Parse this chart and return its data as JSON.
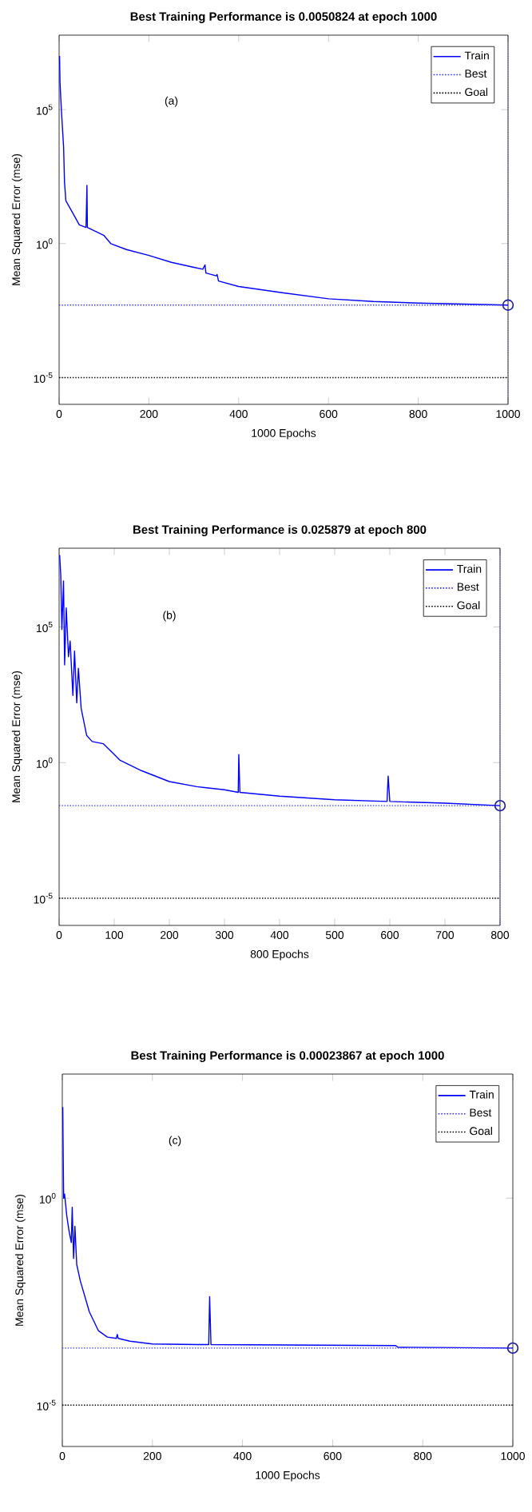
{
  "chart_data": [
    {
      "type": "line",
      "title": "Best Training Performance is 0.0050824 at epoch 1000",
      "xlabel": "1000 Epochs",
      "ylabel": "Mean Squared Error  (mse)",
      "log": true,
      "legend": "top right",
      "annotations": [
        "(a)"
      ],
      "xlim": [
        0,
        1000
      ],
      "xticks": [
        0,
        200,
        400,
        600,
        800,
        1000
      ],
      "ylim": [
        1e-06,
        60000000.0
      ],
      "yticks": [
        {
          "value": 1e-05,
          "label": "10$^{-5}$"
        },
        {
          "value": 1,
          "label": "10$^{0}$"
        },
        {
          "value": 100000.0,
          "label": "10$^{5}$"
        }
      ],
      "ref_lines": [
        {
          "axis": "x",
          "value": 1000,
          "color": "#3333ff",
          "line_style": "dotted"
        }
      ],
      "series": [
        {
          "name": "Train",
          "color": "#0000ff",
          "line_style": "solid",
          "x": [
            1,
            2,
            5,
            10,
            12,
            15,
            25,
            45,
            60,
            62,
            63,
            100,
            115,
            150,
            200,
            250,
            300,
            320,
            325,
            327,
            350,
            352,
            355,
            400,
            500,
            600,
            700,
            800,
            1000
          ],
          "values": [
            10000000.0,
            1000000.0,
            100000.0,
            4000,
            200,
            40,
            20,
            5,
            4,
            150,
            4,
            2,
            1,
            0.6,
            0.36,
            0.2,
            0.13,
            0.11,
            0.16,
            0.08,
            0.063,
            0.07,
            0.04,
            0.025,
            0.0145,
            0.0087,
            0.0069,
            0.006,
            0.0050824
          ]
        },
        {
          "name": "Best",
          "color": "#3333ff",
          "line_style": "dotted",
          "x": [
            0,
            1000
          ],
          "values": [
            0.0050824,
            0.0050824
          ]
        },
        {
          "name": "Goal",
          "color": "#000000",
          "line_style": "dotted",
          "x": [
            0,
            1000
          ],
          "values": [
            1e-05,
            1e-05
          ]
        },
        {
          "type": "scatter",
          "color": "#1a1aa6",
          "marker": "circle",
          "x": [
            1000
          ],
          "values": [
            0.0050824
          ]
        }
      ]
    },
    {
      "type": "line",
      "title": "Best Training Performance is 0.025879 at epoch 800",
      "xlabel": "800 Epochs",
      "ylabel": "Mean Squared Error  (mse)",
      "log": true,
      "legend": "top right",
      "annotations": [
        "(b)"
      ],
      "xlim": [
        0,
        800
      ],
      "xticks": [
        0,
        100,
        200,
        300,
        400,
        500,
        600,
        700,
        800
      ],
      "ylim": [
        1e-06,
        80000000.0
      ],
      "yticks": [
        {
          "value": 1e-05,
          "label": "10$^{-5}$"
        },
        {
          "value": 1,
          "label": "10$^{0}$"
        },
        {
          "value": 100000.0,
          "label": "10$^{5}$"
        }
      ],
      "ref_lines": [
        {
          "axis": "x",
          "value": 800,
          "color": "#3333ff",
          "line_style": "dotted"
        }
      ],
      "series": [
        {
          "name": "Train",
          "color": "#0000ff",
          "line_style": "solid",
          "x": [
            1,
            3,
            5,
            8,
            10,
            13,
            17,
            20,
            25,
            28,
            32,
            35,
            40,
            50,
            60,
            80,
            100,
            110,
            150,
            200,
            250,
            300,
            325,
            326,
            328,
            400,
            500,
            595,
            597,
            600,
            700,
            800
          ],
          "values": [
            45000000.0,
            8000000.0,
            80000.0,
            5000000.0,
            4000,
            500000.0,
            8000,
            30000.0,
            300,
            13000.0,
            160,
            3000,
            100,
            10,
            6,
            5,
            2,
            1.25,
            0.5,
            0.2,
            0.13,
            0.1,
            0.08,
            2,
            0.08,
            0.058,
            0.043,
            0.037,
            0.32,
            0.037,
            0.032,
            0.025879
          ]
        },
        {
          "name": "Best",
          "color": "#3333ff",
          "line_style": "dotted",
          "x": [
            0,
            800
          ],
          "values": [
            0.025879,
            0.025879
          ]
        },
        {
          "name": "Goal",
          "color": "#000000",
          "line_style": "dotted",
          "x": [
            0,
            800
          ],
          "values": [
            1e-05,
            1e-05
          ]
        },
        {
          "type": "scatter",
          "color": "#1a1aa6",
          "marker": "circle",
          "x": [
            800
          ],
          "values": [
            0.025879
          ]
        }
      ]
    },
    {
      "type": "line",
      "title": "Best Training Performance is 0.00023867 at epoch 1000",
      "xlabel": "1000 Epochs",
      "ylabel": "Mean Squared Error  (mse)",
      "log": true,
      "legend": "top right",
      "annotations": [
        "(c)"
      ],
      "xlim": [
        0,
        1000
      ],
      "xticks": [
        0,
        200,
        400,
        600,
        800,
        1000
      ],
      "ylim": [
        1e-06,
        1000
      ],
      "yticks": [
        {
          "value": 1e-05,
          "label": "10$^{-5}$"
        },
        {
          "value": 1,
          "label": "10$^{0}$"
        }
      ],
      "series": [
        {
          "name": "Train",
          "color": "#0000ff",
          "line_style": "solid",
          "x": [
            1,
            2,
            3,
            5,
            10,
            15,
            20,
            22,
            25,
            28,
            32,
            40,
            60,
            80,
            100,
            120,
            122,
            124,
            150,
            200,
            300,
            325,
            327,
            330,
            740,
            745,
            1000
          ],
          "values": [
            160,
            11,
            1,
            1.26,
            0.37,
            0.16,
            0.085,
            0.6,
            0.035,
            0.21,
            0.025,
            0.01,
            0.0018,
            0.00063,
            0.00044,
            0.00041,
            0.00051,
            0.00041,
            0.00035,
            0.0003,
            0.00029,
            0.00029,
            0.0042,
            0.00029,
            0.000275,
            0.00025,
            0.00023867
          ]
        },
        {
          "name": "Best",
          "color": "#3333ff",
          "line_style": "dotted",
          "x": [
            0,
            1000
          ],
          "values": [
            0.00023867,
            0.00023867
          ]
        },
        {
          "name": "Goal",
          "color": "#000000",
          "line_style": "dotted",
          "x": [
            0,
            1000
          ],
          "values": [
            1e-05,
            1e-05
          ]
        },
        {
          "type": "scatter",
          "color": "#1a1aa6",
          "marker": "circle",
          "x": [
            1000
          ],
          "values": [
            0.00023867
          ]
        }
      ]
    }
  ]
}
